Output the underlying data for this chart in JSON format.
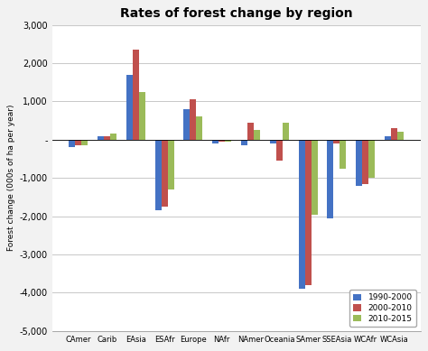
{
  "title": "Rates of forest change by region",
  "ylabel": "Forest change (000s of ha per year)",
  "categories": [
    "CAmer",
    "Carib",
    "EAsia",
    "ESAfr",
    "Europe",
    "NAfr",
    "NAmer",
    "Oceania",
    "SAmer",
    "SSEAsia",
    "WCAfr",
    "WCAsia"
  ],
  "series": {
    "1990-2000": [
      -200,
      100,
      1700,
      -1850,
      800,
      -100,
      -150,
      -100,
      -3900,
      -2050,
      -1200,
      100
    ],
    "2000-2010": [
      -150,
      100,
      2350,
      -1750,
      1050,
      -50,
      450,
      -550,
      -3800,
      -100,
      -1150,
      300
    ],
    "2010-2015": [
      -150,
      150,
      1250,
      -1300,
      600,
      -50,
      250,
      450,
      -1950,
      -750,
      -1000,
      200
    ]
  },
  "colors": {
    "1990-2000": "#4472c4",
    "2000-2010": "#c0504d",
    "2010-2015": "#9bbb59"
  },
  "ylim": [
    -5000,
    3000
  ],
  "yticks": [
    -5000,
    -4000,
    -3000,
    -2000,
    -1000,
    0,
    1000,
    2000,
    3000
  ],
  "ytick_labels": [
    "-5,000",
    "-4,000",
    "-3,000",
    "-2,000",
    "-1,000",
    "-",
    "1,000",
    "2,000",
    "3,000"
  ],
  "background_color": "#f2f2f2",
  "plot_bg_color": "#ffffff",
  "grid_color": "#c8c8c8"
}
